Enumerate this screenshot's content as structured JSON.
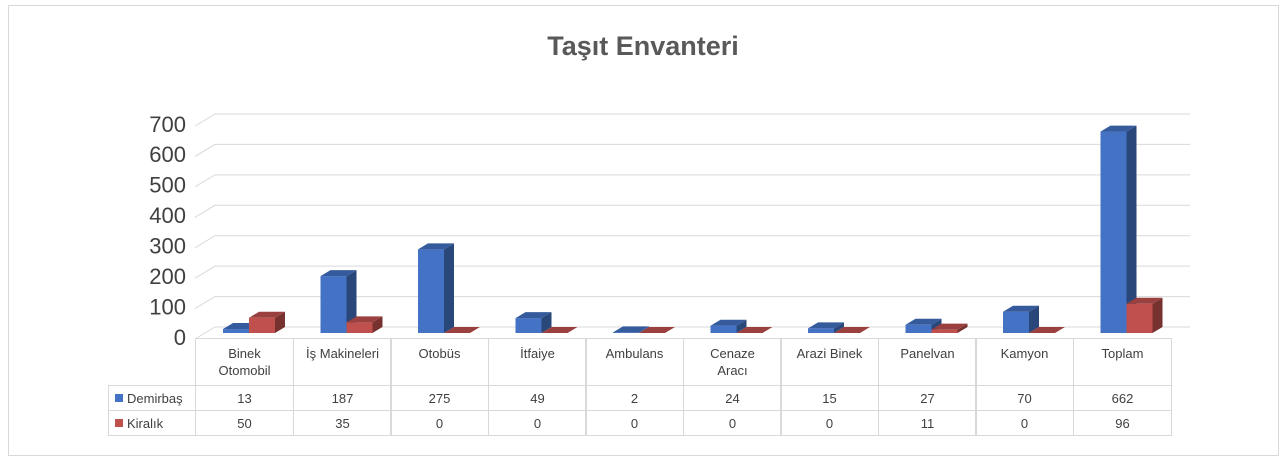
{
  "chart_data": {
    "type": "bar3d",
    "title": "Taşıt Envanteri",
    "categories": [
      "Binek Otomobil",
      "İş Makineleri",
      "Otobüs",
      "İtfaiye",
      "Ambulans",
      "Cenaze Aracı",
      "Arazi Binek",
      "Panelvan",
      "Kamyon",
      "Toplam"
    ],
    "series": [
      {
        "name": "Demirbaş",
        "color": "#4472c4",
        "values": [
          13,
          187,
          275,
          49,
          2,
          24,
          15,
          27,
          70,
          662
        ]
      },
      {
        "name": "Kiralık",
        "color": "#c0504d",
        "values": [
          50,
          35,
          0,
          0,
          0,
          0,
          0,
          11,
          0,
          96
        ]
      }
    ],
    "ylim": [
      0,
      700
    ],
    "yticks": [
      0,
      100,
      200,
      300,
      400,
      500,
      600,
      700
    ],
    "grid": true
  }
}
